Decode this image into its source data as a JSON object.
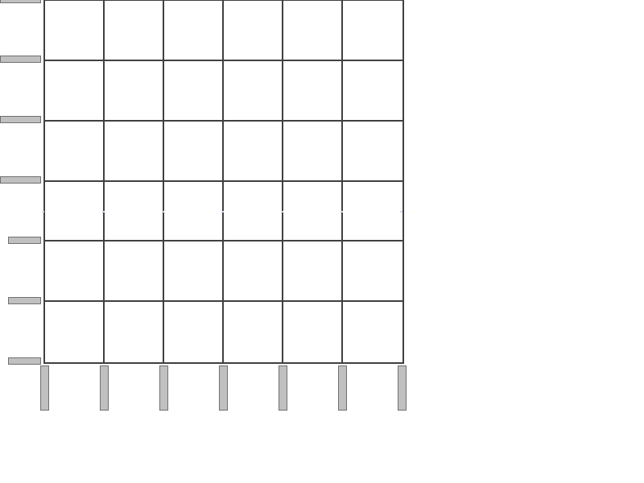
{
  "grid": {
    "rows": 6,
    "columns": 6
  },
  "row_handles": 7,
  "column_handles": 7,
  "colors": {
    "background": "#ffffff",
    "grid_line": "#404040",
    "handle_fill": "#c0c0c0",
    "handle_border": "#707070"
  }
}
